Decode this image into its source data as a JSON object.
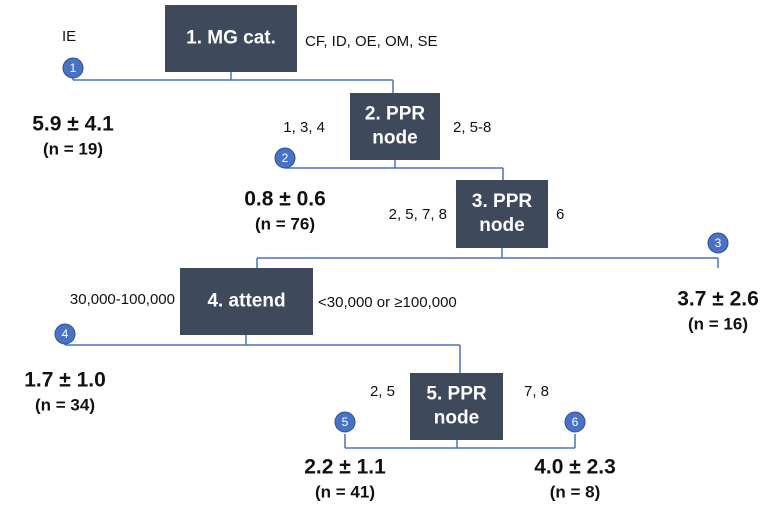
{
  "nodes": [
    {
      "lines": [
        "1. MG cat."
      ]
    },
    {
      "lines": [
        "2. PPR",
        "node"
      ]
    },
    {
      "lines": [
        "3. PPR",
        "node"
      ]
    },
    {
      "lines": [
        "4. attend"
      ]
    },
    {
      "lines": [
        "5. PPR",
        "node"
      ]
    }
  ],
  "branches": [
    "IE",
    "CF, ID, OE, OM, SE",
    "1, 3, 4",
    "2, 5-8",
    "2, 5, 7, 8",
    "6",
    "30,000-100,000",
    "<30,000 or ≥100,000",
    "2, 5",
    "7, 8"
  ],
  "leaves": [
    {
      "number": "1",
      "mean": "5.9 ± 4.1",
      "n": "(n = 19)"
    },
    {
      "number": "2",
      "mean": "0.8 ± 0.6",
      "n": "(n = 76)"
    },
    {
      "number": "3",
      "mean": "3.7 ± 2.6",
      "n": "(n = 16)"
    },
    {
      "number": "4",
      "mean": "1.7 ± 1.0",
      "n": "(n = 34)"
    },
    {
      "number": "5",
      "mean": "2.2 ± 1.1",
      "n": "(n = 41)"
    },
    {
      "number": "6",
      "mean": "4.0 ± 2.3",
      "n": "(n = 8)"
    }
  ]
}
